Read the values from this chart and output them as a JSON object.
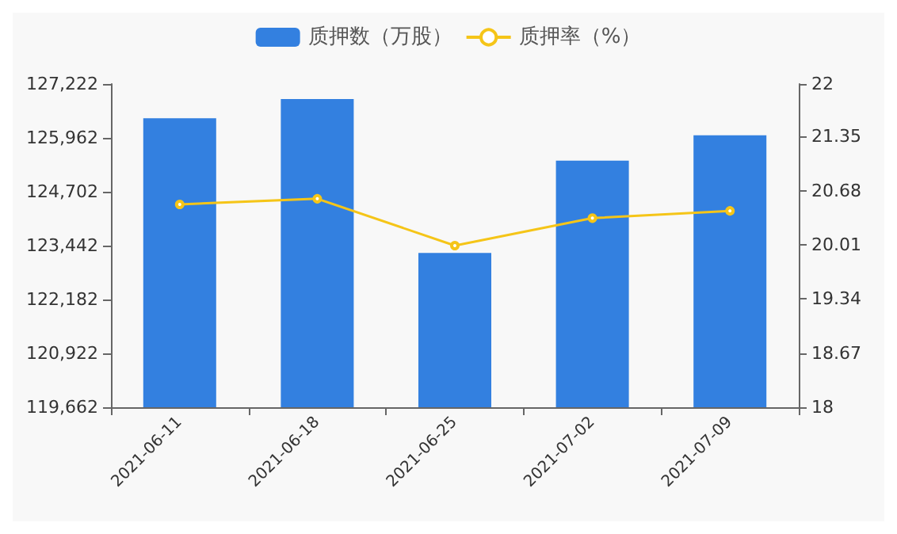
{
  "chart_data": {
    "type": "bar",
    "categories": [
      "2021-06-11",
      "2021-06-18",
      "2021-06-25",
      "2021-07-02",
      "2021-07-09"
    ],
    "series": [
      {
        "name": "质押数（万股）",
        "color": "#3380e0",
        "values": [
          126420,
          126870,
          123270,
          125430,
          126020
        ]
      },
      {
        "name": "质押率（%）",
        "type": "line",
        "axis": "y2",
        "color": "#f5c518",
        "values": [
          20.51,
          20.58,
          20.0,
          20.34,
          20.43
        ]
      }
    ],
    "ylim": [
      119662,
      127222
    ],
    "yticks": [
      {
        "value": 119662,
        "label": "119,662"
      },
      {
        "value": 120922,
        "label": "120,922"
      },
      {
        "value": 122182,
        "label": "122,182"
      },
      {
        "value": 123442,
        "label": "123,442"
      },
      {
        "value": 124702,
        "label": "124,702"
      },
      {
        "value": 125962,
        "label": "125,962"
      },
      {
        "value": 127222,
        "label": "127,222"
      }
    ],
    "y2lim": [
      18,
      22
    ],
    "y2ticks": [
      18,
      18.67,
      19.34,
      20.01,
      20.68,
      21.35,
      22
    ],
    "legend": "top",
    "marker": "circle",
    "grid": false
  }
}
